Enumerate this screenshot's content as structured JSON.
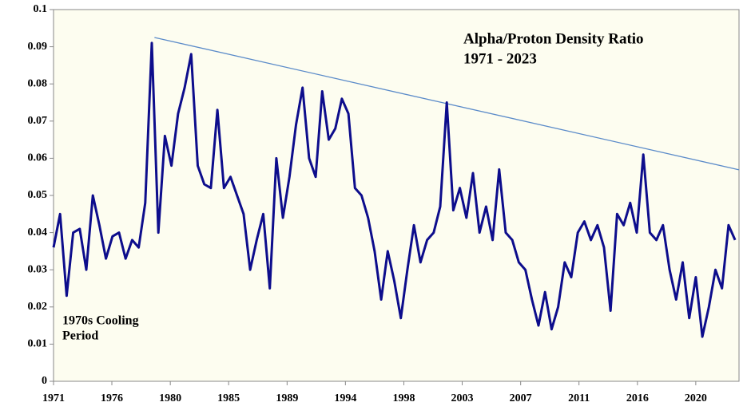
{
  "chart_data": {
    "type": "line",
    "title": "Alpha/Proton Density Ratio",
    "subtitle": "1971 - 2023",
    "annotations": [
      "1970s Cooling",
      "Period"
    ],
    "background": "#fdfdf0",
    "xlim": [
      1971,
      2023.3
    ],
    "xticks": [
      {
        "value": 1971,
        "label": "1971"
      },
      {
        "value": 1975.45,
        "label": "1976"
      },
      {
        "value": 1979.91,
        "label": "1980"
      },
      {
        "value": 1984.36,
        "label": "1985"
      },
      {
        "value": 1988.82,
        "label": "1989"
      },
      {
        "value": 1993.27,
        "label": "1994"
      },
      {
        "value": 1997.73,
        "label": "1998"
      },
      {
        "value": 2002.18,
        "label": "2003"
      },
      {
        "value": 2006.64,
        "label": "2007"
      },
      {
        "value": 2011.09,
        "label": "2011"
      },
      {
        "value": 2015.55,
        "label": "2016"
      },
      {
        "value": 2020.0,
        "label": "2020"
      }
    ],
    "ylim": [
      0,
      0.1
    ],
    "yticks": [
      0,
      0.01,
      0.02,
      0.03,
      0.04,
      0.05,
      0.06,
      0.07,
      0.08,
      0.09,
      0.1
    ],
    "x": [
      1971,
      1971.5,
      1972,
      1972.5,
      1973,
      1973.5,
      1974,
      1974.5,
      1975,
      1975.5,
      1976,
      1976.5,
      1977,
      1977.5,
      1978,
      1978.5,
      1979,
      1979.5,
      1980,
      1980.5,
      1981,
      1981.5,
      1982,
      1982.5,
      1983,
      1983.5,
      1984,
      1984.5,
      1985,
      1985.5,
      1986,
      1986.5,
      1987,
      1987.5,
      1988,
      1988.5,
      1989,
      1989.5,
      1990,
      1990.5,
      1991,
      1991.5,
      1992,
      1992.5,
      1993,
      1993.5,
      1994,
      1994.5,
      1995,
      1995.5,
      1996,
      1996.5,
      1997,
      1997.5,
      1998,
      1998.5,
      1999,
      1999.5,
      2000,
      2000.5,
      2001,
      2001.5,
      2002,
      2002.5,
      2003,
      2003.5,
      2004,
      2004.5,
      2005,
      2005.5,
      2006,
      2006.5,
      2007,
      2007.5,
      2008,
      2008.5,
      2009,
      2009.5,
      2010,
      2010.5,
      2011,
      2011.5,
      2012,
      2012.5,
      2013,
      2013.5,
      2014,
      2014.5,
      2015,
      2015.5,
      2016,
      2016.5,
      2017,
      2017.5,
      2018,
      2018.5,
      2019,
      2019.5,
      2020,
      2020.5,
      2021,
      2021.5,
      2022,
      2022.5,
      2023
    ],
    "series": [
      {
        "color": "#0d0d8c",
        "values": [
          0.036,
          0.045,
          0.023,
          0.04,
          0.041,
          0.03,
          0.05,
          0.042,
          0.033,
          0.039,
          0.04,
          0.033,
          0.038,
          0.036,
          0.048,
          0.091,
          0.04,
          0.066,
          0.058,
          0.072,
          0.079,
          0.088,
          0.058,
          0.053,
          0.052,
          0.073,
          0.052,
          0.055,
          0.05,
          0.045,
          0.03,
          0.038,
          0.045,
          0.025,
          0.06,
          0.044,
          0.055,
          0.069,
          0.079,
          0.06,
          0.055,
          0.078,
          0.065,
          0.068,
          0.076,
          0.072,
          0.052,
          0.05,
          0.044,
          0.035,
          0.022,
          0.035,
          0.027,
          0.017,
          0.03,
          0.042,
          0.032,
          0.038,
          0.04,
          0.047,
          0.075,
          0.046,
          0.052,
          0.044,
          0.056,
          0.04,
          0.047,
          0.038,
          0.057,
          0.04,
          0.038,
          0.032,
          0.03,
          0.022,
          0.015,
          0.024,
          0.014,
          0.02,
          0.032,
          0.028,
          0.04,
          0.043,
          0.038,
          0.042,
          0.036,
          0.019,
          0.045,
          0.042,
          0.048,
          0.04,
          0.061,
          0.04,
          0.038,
          0.042,
          0.03,
          0.022,
          0.032,
          0.017,
          0.028,
          0.012,
          0.02,
          0.03,
          0.025,
          0.042,
          0.038
        ]
      }
    ],
    "trend_line": {
      "color": "#5b8bc9",
      "x": [
        1978.7,
        2023.3
      ],
      "values": [
        0.0925,
        0.0569
      ]
    }
  }
}
